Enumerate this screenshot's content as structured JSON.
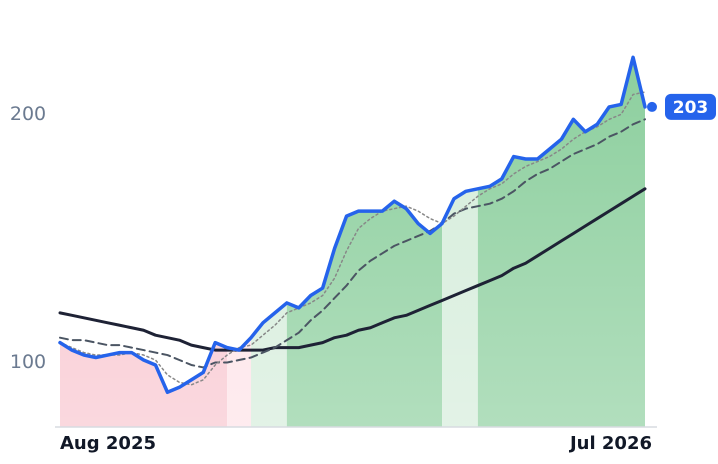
{
  "chart_data": {
    "type": "line",
    "categories": [
      "Aug 2025",
      null,
      null,
      null,
      null,
      null,
      null,
      null,
      null,
      null,
      null,
      null,
      null,
      null,
      null,
      null,
      null,
      null,
      null,
      null,
      null,
      null,
      null,
      null,
      null,
      null,
      null,
      null,
      null,
      null,
      null,
      null,
      null,
      null,
      null,
      null,
      null,
      null,
      null,
      null,
      null,
      null,
      null,
      null,
      null,
      null,
      null,
      null,
      null,
      "Jul 2026"
    ],
    "series": [
      {
        "color": "#2563eb",
        "style": "solid",
        "width": 3.5,
        "values": [
          108,
          105,
          103,
          102,
          103,
          104,
          104,
          101,
          99,
          88,
          90,
          93,
          96,
          108,
          106,
          105,
          110,
          116,
          120,
          124,
          122,
          127,
          130,
          146,
          159,
          161,
          161,
          161,
          165,
          162,
          156,
          152,
          156,
          166,
          169,
          170,
          171,
          174,
          183,
          182,
          182,
          186,
          190,
          198,
          193,
          196,
          203,
          204,
          223,
          203
        ]
      },
      {
        "color": "#888888",
        "style": "dotted",
        "width": 1.5,
        "values": [
          108,
          106,
          104,
          103,
          103,
          103,
          104,
          103,
          101,
          95,
          92,
          91,
          93,
          99,
          103,
          106,
          107,
          111,
          115,
          120,
          122,
          124,
          127,
          134,
          145,
          154,
          158,
          161,
          162,
          163,
          161,
          158,
          156,
          159,
          163,
          167,
          170,
          172,
          176,
          179,
          181,
          183,
          186,
          190,
          193,
          195,
          198,
          200,
          208,
          209
        ]
      },
      {
        "color": "#4b5563",
        "style": "dashed",
        "width": 2,
        "values": [
          110,
          109,
          109,
          108,
          107,
          107,
          106,
          105,
          104,
          103,
          101,
          99,
          98,
          100,
          100,
          101,
          102,
          104,
          106,
          109,
          112,
          117,
          121,
          126,
          131,
          137,
          141,
          144,
          147,
          149,
          151,
          153,
          156,
          160,
          162,
          163,
          164,
          166,
          169,
          173,
          176,
          178,
          181,
          184,
          186,
          188,
          191,
          193,
          196,
          198
        ]
      },
      {
        "color": "#1e2235",
        "style": "solid",
        "width": 3,
        "values": [
          120,
          119,
          118,
          117,
          116,
          115,
          114,
          113,
          111,
          110,
          109,
          107,
          106,
          105,
          105,
          105,
          105,
          105,
          106,
          106,
          106,
          107,
          108,
          110,
          111,
          113,
          114,
          116,
          118,
          119,
          121,
          123,
          125,
          127,
          129,
          131,
          133,
          135,
          138,
          140,
          143,
          146,
          149,
          152,
          155,
          158,
          161,
          164,
          167,
          170
        ]
      }
    ],
    "regimes": [
      {
        "start": 0,
        "end": 14,
        "color": "#f8c3cd"
      },
      {
        "start": 14,
        "end": 16,
        "color": "#fde1e6"
      },
      {
        "start": 16,
        "end": 19,
        "color": "#d3ecd9"
      },
      {
        "start": 19,
        "end": 32,
        "color": "#88cd9a"
      },
      {
        "start": 32,
        "end": 35,
        "color": "#d3ecd9"
      },
      {
        "start": 35,
        "end": 49,
        "color": "#88cd9a"
      }
    ],
    "ylim": [
      74,
      234
    ],
    "yticks": [
      100,
      200
    ],
    "grid": false
  }
}
